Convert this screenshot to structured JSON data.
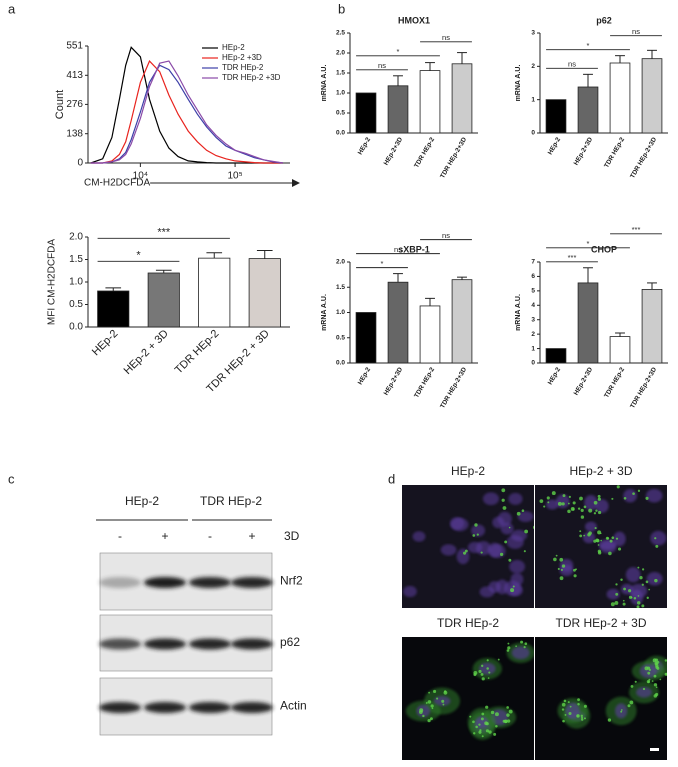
{
  "panel_labels": [
    "a",
    "b",
    "c",
    "d"
  ],
  "chart_data": [
    {
      "type": "line",
      "xscale": "log",
      "xlabel": "CM-H2DCFDA",
      "ylabel": "Count",
      "legend": "upper right",
      "x": [
        3000,
        4000,
        5000,
        6000,
        7000,
        8000,
        10000,
        12500,
        16000,
        20000,
        25000,
        32000,
        40000,
        50000,
        63000,
        80000,
        100000,
        130000,
        160000,
        200000,
        250000,
        320000
      ],
      "xlim": [
        2800,
        380000
      ],
      "xticks": [
        {
          "value": 10000,
          "label": "10⁴"
        },
        {
          "value": 100000,
          "label": "10⁵"
        }
      ],
      "ylim": [
        0,
        551
      ],
      "yticks": [
        0,
        138,
        276,
        413,
        551
      ],
      "series": [
        {
          "name": "HEp-2",
          "color": "#000000",
          "values": [
            0,
            20,
            120,
            300,
            460,
            545,
            500,
            300,
            150,
            70,
            30,
            10,
            5,
            2,
            0,
            0,
            0,
            0,
            0,
            0,
            0,
            0
          ]
        },
        {
          "name": "HEp-2 +3D",
          "color": "#e8231e",
          "values": [
            0,
            0,
            10,
            40,
            100,
            200,
            380,
            480,
            430,
            320,
            230,
            150,
            100,
            60,
            35,
            20,
            10,
            5,
            2,
            0,
            0,
            0
          ]
        },
        {
          "name": "TDR HEp-2",
          "color": "#3d3fa8",
          "values": [
            0,
            0,
            5,
            20,
            50,
            110,
            240,
            380,
            460,
            440,
            380,
            300,
            230,
            170,
            120,
            80,
            60,
            40,
            25,
            15,
            5,
            0
          ]
        },
        {
          "name": "TDR HEp-2 +3D",
          "color": "#8a4aa8",
          "values": [
            0,
            0,
            5,
            15,
            40,
            90,
            210,
            360,
            470,
            480,
            410,
            320,
            250,
            180,
            130,
            90,
            60,
            45,
            30,
            15,
            8,
            0
          ]
        }
      ]
    },
    {
      "type": "bar",
      "ylabel": "MFI CM-H2DCFDA",
      "categories": [
        "HEp-2",
        "HEp-2 + 3D",
        "TDR HEp-2",
        "TDR HEp-2 + 3D"
      ],
      "values": [
        0.8,
        1.2,
        1.53,
        1.52
      ],
      "errors": [
        0.07,
        0.06,
        0.12,
        0.18
      ],
      "colors": [
        "#000000",
        "#777777",
        "#ffffff",
        "#d6cfcb"
      ],
      "ylim": [
        0,
        2
      ],
      "yticks": [
        {
          "value": 0,
          "label": "0.0"
        },
        {
          "value": 0.5,
          "label": "0.5"
        },
        {
          "value": 1,
          "label": "1.0"
        },
        {
          "value": 1.5,
          "label": "1.5"
        },
        {
          "value": 2,
          "label": "2.0"
        }
      ],
      "annotations": [
        {
          "label": "*",
          "between": [
            0,
            1
          ]
        },
        {
          "label": "***",
          "between": [
            0,
            2
          ]
        }
      ]
    },
    {
      "type": "bar",
      "title": "HMOX1",
      "ylabel": "mRNA A.U.",
      "categories": [
        "HEp-2",
        "HEp-2+3D",
        "TDR HEp-2",
        "TDR HEp-2+3D"
      ],
      "values": [
        1.0,
        1.18,
        1.56,
        1.73
      ],
      "errors": [
        0,
        0.25,
        0.2,
        0.28
      ],
      "colors": [
        "#000000",
        "#666666",
        "#ffffff",
        "#cccccc"
      ],
      "ylim": [
        0,
        2.5
      ],
      "yticks": [
        {
          "value": 0,
          "label": "0.0"
        },
        {
          "value": 0.5,
          "label": "0.5"
        },
        {
          "value": 1,
          "label": "1.0"
        },
        {
          "value": 1.5,
          "label": "1.5"
        },
        {
          "value": 2,
          "label": "2.0"
        },
        {
          "value": 2.5,
          "label": "2.5"
        }
      ],
      "annotations": [
        {
          "label": "ns",
          "between": [
            0,
            1
          ]
        },
        {
          "label": "*",
          "between": [
            0,
            2
          ]
        },
        {
          "label": "ns",
          "between": [
            2,
            3
          ]
        }
      ]
    },
    {
      "type": "bar",
      "title": "p62",
      "ylabel": "mRNA A.U.",
      "categories": [
        "HEp-2",
        "HEp-2+3D",
        "TDR HEp-2",
        "TDR HEp-2+3D"
      ],
      "values": [
        1.0,
        1.38,
        2.1,
        2.23
      ],
      "errors": [
        0,
        0.38,
        0.22,
        0.25
      ],
      "colors": [
        "#000000",
        "#666666",
        "#ffffff",
        "#cccccc"
      ],
      "ylim": [
        0,
        3
      ],
      "yticks": [
        0,
        1,
        2,
        3
      ],
      "annotations": [
        {
          "label": "ns",
          "between": [
            0,
            1
          ]
        },
        {
          "label": "*",
          "between": [
            0,
            2
          ]
        },
        {
          "label": "ns",
          "between": [
            2,
            3
          ]
        }
      ]
    },
    {
      "type": "bar",
      "title": "sXBP-1",
      "ylabel": "mRNA A.U.",
      "categories": [
        "HEp-2",
        "HEp-2+3D",
        "TDR HEp-2",
        "TDR HEp-2+3D"
      ],
      "values": [
        1.0,
        1.6,
        1.13,
        1.65
      ],
      "errors": [
        0,
        0.17,
        0.15,
        0.05
      ],
      "colors": [
        "#000000",
        "#666666",
        "#ffffff",
        "#cccccc"
      ],
      "ylim": [
        0,
        2
      ],
      "yticks": [
        {
          "value": 0,
          "label": "0.0"
        },
        {
          "value": 0.5,
          "label": "0.5"
        },
        {
          "value": 1,
          "label": "1.0"
        },
        {
          "value": 1.5,
          "label": "1.5"
        },
        {
          "value": 2,
          "label": "2.0"
        }
      ],
      "annotations": [
        {
          "label": "*",
          "between": [
            0,
            1
          ]
        },
        {
          "label": "ns",
          "between": [
            0,
            2
          ]
        },
        {
          "label": "ns",
          "between": [
            2,
            3
          ]
        }
      ]
    },
    {
      "type": "bar",
      "title": "CHOP",
      "ylabel": "mRNA A.U.",
      "categories": [
        "HEp-2",
        "HEp-2+3D",
        "TDR HEp-2",
        "TDR HEp-2+3D"
      ],
      "values": [
        1.0,
        5.55,
        1.83,
        5.1
      ],
      "errors": [
        0,
        1.05,
        0.25,
        0.45
      ],
      "colors": [
        "#000000",
        "#666666",
        "#ffffff",
        "#cccccc"
      ],
      "ylim": [
        0,
        7
      ],
      "yticks": [
        0,
        1,
        2,
        3,
        4,
        5,
        6,
        7
      ],
      "annotations": [
        {
          "label": "***",
          "between": [
            0,
            1
          ]
        },
        {
          "label": "*",
          "between": [
            0,
            2
          ]
        },
        {
          "label": "***",
          "between": [
            2,
            3
          ]
        }
      ]
    }
  ],
  "blot": {
    "groups": [
      "HEp-2",
      "TDR  HEp-2"
    ],
    "lanes": [
      "-",
      "+",
      "-",
      "+"
    ],
    "treatment": "3D",
    "rows": [
      "Nrf2",
      "p62",
      "Actin"
    ]
  },
  "microscopy": {
    "titles": [
      "HEp-2",
      "HEp-2 + 3D",
      "TDR HEp-2",
      "TDR HEp-2 + 3D"
    ]
  }
}
